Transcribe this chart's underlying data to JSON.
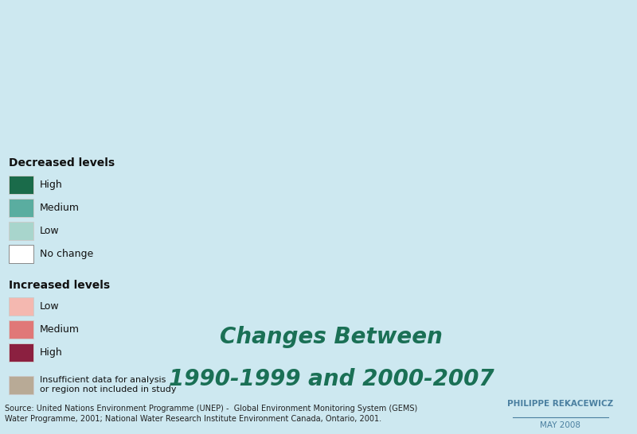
{
  "background_color": "#cde8f0",
  "title_line1": "Changes Between",
  "title_line2": "1990-1999 and 2000-2007",
  "title_color": "#1a7055",
  "title_fontsize": 20,
  "legend_decreased_title": "Decreased levels",
  "legend_increased_title": "Increased levels",
  "legend_items_decreased": [
    {
      "label": "High",
      "color": "#1a6b4a"
    },
    {
      "label": "Medium",
      "color": "#5aada0"
    },
    {
      "label": "Low",
      "color": "#a8d5cc"
    },
    {
      "label": "No change",
      "color": "#ffffff"
    }
  ],
  "legend_items_increased": [
    {
      "label": "Low",
      "color": "#f4b8b0"
    },
    {
      "label": "Medium",
      "color": "#e07878"
    },
    {
      "label": "High",
      "color": "#8b2040"
    },
    {
      "label": "Insufficient data for analysis\nor region not included in study",
      "color": "#b8aa96"
    }
  ],
  "source_text": "Source: United Nations Environment Programme (UNEP) -  Global Environment Monitoring System (GEMS)\nWater Programme, 2001; National Water Research Institute Environment Canada, Ontario, 2001.",
  "author_text": "PHILIPPE REKACEWICZ",
  "date_text": "MAY 2008",
  "author_color": "#4a7fa0",
  "source_fontsize": 7.0,
  "author_fontsize": 7.5,
  "legend_fontsize": 9,
  "legend_title_fontsize": 10,
  "map_land_color": "#b8aa96",
  "map_border_color": "#ffffff",
  "iso_colors": {
    "CAN": "#5aada0",
    "USA": "#ffffff",
    "MEX": "#f4b8b0",
    "GTM": "#b8aa96",
    "BLZ": "#b8aa96",
    "HND": "#b8aa96",
    "SLV": "#b8aa96",
    "NIC": "#b8aa96",
    "CRI": "#b8aa96",
    "PAN": "#b8aa96",
    "CUB": "#b8aa96",
    "JAM": "#b8aa96",
    "HTI": "#b8aa96",
    "DOM": "#b8aa96",
    "PRI": "#b8aa96",
    "TTO": "#b8aa96",
    "COL": "#f4b8b0",
    "VEN": "#b8aa96",
    "GUY": "#b8aa96",
    "SUR": "#b8aa96",
    "BRA": "#1a6b4a",
    "ECU": "#b8aa96",
    "PER": "#ffffff",
    "BOL": "#b8aa96",
    "PRY": "#b8aa96",
    "URY": "#b8aa96",
    "ARG": "#ffffff",
    "CHL": "#ffffff",
    "ISL": "#b8aa96",
    "NOR": "#5aada0",
    "SWE": "#5aada0",
    "FIN": "#5aada0",
    "DNK": "#5aada0",
    "GBR": "#5aada0",
    "IRL": "#5aada0",
    "NLD": "#5aada0",
    "BEL": "#a8d5cc",
    "LUX": "#a8d5cc",
    "FRA": "#a8d5cc",
    "ESP": "#a8d5cc",
    "PRT": "#a8d5cc",
    "DEU": "#5aada0",
    "CHE": "#5aada0",
    "AUT": "#5aada0",
    "ITA": "#a8d5cc",
    "POL": "#5aada0",
    "CZE": "#5aada0",
    "SVK": "#5aada0",
    "HUN": "#5aada0",
    "SVN": "#5aada0",
    "HRV": "#5aada0",
    "BIH": "#a8d5cc",
    "SRB": "#e07878",
    "MNE": "#e07878",
    "ALB": "#e07878",
    "MKD": "#e07878",
    "GRC": "#a8d5cc",
    "BGR": "#a8d5cc",
    "ROU": "#a8d5cc",
    "MDA": "#ffffff",
    "UKR": "#ffffff",
    "BLR": "#1a6b4a",
    "LTU": "#1a6b4a",
    "LVA": "#1a6b4a",
    "EST": "#1a6b4a",
    "RUS": "#ffffff",
    "GEO": "#b8aa96",
    "ARM": "#b8aa96",
    "AZE": "#b8aa96",
    "TUR": "#e07878",
    "SYR": "#b8aa96",
    "LBN": "#1a6b4a",
    "ISR": "#1a6b4a",
    "JOR": "#b8aa96",
    "IRQ": "#b8aa96",
    "KWT": "#b8aa96",
    "SAU": "#b8aa96",
    "YEM": "#b8aa96",
    "OMN": "#b8aa96",
    "ARE": "#b8aa96",
    "QAT": "#b8aa96",
    "BHR": "#b8aa96",
    "IRN": "#f4b8b0",
    "AFG": "#b8aa96",
    "PAK": "#f4b8b0",
    "IND": "#f4b8b0",
    "NPL": "#b8aa96",
    "BTN": "#b8aa96",
    "BGD": "#b8aa96",
    "LKA": "#f4b8b0",
    "MMR": "#b8aa96",
    "THA": "#b8aa96",
    "KHM": "#b8aa96",
    "VNM": "#b8aa96",
    "LAO": "#b8aa96",
    "MYS": "#b8aa96",
    "SGP": "#b8aa96",
    "IDN": "#b8aa96",
    "PHL": "#b8aa96",
    "CHN": "#ffffff",
    "MNG": "#b8aa96",
    "KOR": "#b8aa96",
    "PRK": "#b8aa96",
    "JPN": "#b8aa96",
    "KAZ": "#8b2040",
    "UZB": "#8b2040",
    "TKM": "#8b2040",
    "KGZ": "#5aada0",
    "TJK": "#5aada0",
    "MAR": "#b8aa96",
    "DZA": "#b8aa96",
    "TUN": "#b8aa96",
    "LBY": "#b8aa96",
    "EGY": "#b8aa96",
    "SDN": "#b8aa96",
    "SSD": "#b8aa96",
    "ETH": "#b8aa96",
    "ERI": "#b8aa96",
    "DJI": "#b8aa96",
    "SOM": "#b8aa96",
    "KEN": "#b8aa96",
    "UGA": "#b8aa96",
    "RWA": "#b8aa96",
    "BDI": "#b8aa96",
    "TZA": "#5aada0",
    "MOZ": "#a8d5cc",
    "MWI": "#5aada0",
    "ZMB": "#a8d5cc",
    "ZWE": "#a8d5cc",
    "AGO": "#b8aa96",
    "COD": "#b8aa96",
    "COG": "#b8aa96",
    "CMR": "#b8aa96",
    "CAF": "#b8aa96",
    "TCD": "#b8aa96",
    "NER": "#b8aa96",
    "MLI": "#b8aa96",
    "MRT": "#b8aa96",
    "SEN": "#b8aa96",
    "GMB": "#b8aa96",
    "GNB": "#b8aa96",
    "GIN": "#b8aa96",
    "SLE": "#b8aa96",
    "LBR": "#b8aa96",
    "CIV": "#b8aa96",
    "GHA": "#b8aa96",
    "TGO": "#b8aa96",
    "BEN": "#b8aa96",
    "NGA": "#b8aa96",
    "BFA": "#b8aa96",
    "NAM": "#ffffff",
    "BWA": "#b8aa96",
    "ZAF": "#ffffff",
    "LSO": "#b8aa96",
    "SWZ": "#b8aa96",
    "MDG": "#b8aa96",
    "AUS": "#ffffff",
    "NZL": "#b8aa96",
    "PNG": "#b8aa96",
    "FJI": "#b8aa96",
    "GRL": "#b8aa96"
  }
}
